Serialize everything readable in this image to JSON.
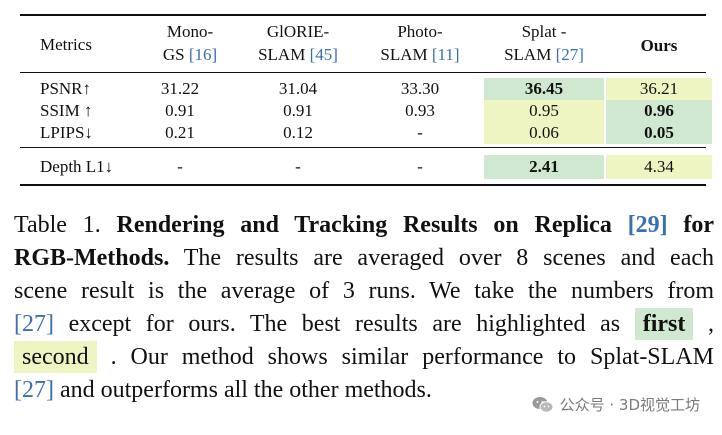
{
  "table": {
    "headers": [
      {
        "line1": "Metrics",
        "line2": "",
        "cite": ""
      },
      {
        "line1": "Mono-",
        "line2": "GS ",
        "cite": "[16]"
      },
      {
        "line1": "GlORIE-",
        "line2": "SLAM ",
        "cite": "[45]"
      },
      {
        "line1": "Photo-",
        "line2": "SLAM ",
        "cite": "[11]"
      },
      {
        "line1": "Splat -",
        "line2": "SLAM ",
        "cite": "[27]"
      },
      {
        "line1": "Ours",
        "line2": "",
        "cite": ""
      }
    ],
    "rows": [
      {
        "metric": "PSNR↑",
        "values": [
          "31.22",
          "31.04",
          "33.30",
          "36.45",
          "36.21"
        ]
      },
      {
        "metric": "SSIM ↑",
        "values": [
          "0.91",
          "0.91",
          "0.93",
          "0.95",
          "0.96"
        ]
      },
      {
        "metric": "LPIPS↓",
        "values": [
          "0.21",
          "0.12",
          "-",
          "0.06",
          "0.05"
        ]
      },
      {
        "metric": "Depth L1↓",
        "values": [
          "-",
          "-",
          "-",
          "2.41",
          "4.34"
        ]
      }
    ]
  },
  "caption": {
    "l1_a": "Table 1. ",
    "l1_b": "Rendering and Tracking Results on Replica ",
    "l1_cite": "[29]",
    "l1_c": " for",
    "l2_a": "RGB-Methods.",
    "l2_b": " The results are averaged over 8 scenes and each",
    "l3": "scene result is the average of 3 runs.  We take the numbers from",
    "l4_cite": "[27]",
    "l4_b": " except for ours.  The best results are highlighted as ",
    "first": "first",
    "l4_c": " ,",
    "second": "second",
    "l5_b": " . Our method shows similar performance to Splat-SLAM",
    "l6_cite": "[27]",
    "l6_b": " and outperforms all the other methods."
  },
  "watermark": {
    "text": "公众号 · 3D视觉工坊"
  },
  "colors": {
    "first": "#cfe8cf",
    "second": "#eef5c2",
    "cite": "#3a6fb0"
  }
}
